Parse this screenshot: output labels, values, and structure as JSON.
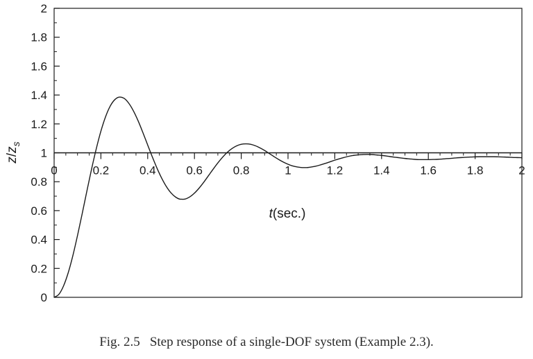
{
  "chart_data": {
    "type": "line",
    "title": "",
    "xlabel_var": "t",
    "xlabel_unit": "(sec.)",
    "ylabel_var": "z",
    "ylabel_sep": "/",
    "ylabel_den": "z",
    "ylabel_sub": "s",
    "xlim": [
      0,
      2
    ],
    "ylim": [
      0,
      2
    ],
    "x_axis_at_y": 1,
    "x_ticks": [
      0,
      0.2,
      0.4,
      0.6,
      0.8,
      1,
      1.2,
      1.4,
      1.6,
      1.8,
      2
    ],
    "x_tick_labels": [
      "0",
      "0.2",
      "0.4",
      "0.6",
      "0.8",
      "1",
      "1.2",
      "1.4",
      "1.6",
      "1.8",
      "2"
    ],
    "y_ticks": [
      0,
      0.2,
      0.4,
      0.6,
      0.8,
      1,
      1.2,
      1.4,
      1.6,
      1.8,
      2
    ],
    "y_tick_labels": [
      "0",
      "0.2",
      "0.4",
      "0.6",
      "0.8",
      "1",
      "1.2",
      "1.4",
      "1.6",
      "1.8",
      "2"
    ],
    "grid": false,
    "line_color": "#1a1a1a",
    "series": [
      {
        "x": [
          0,
          0.02,
          0.04,
          0.06,
          0.08,
          0.1,
          0.12,
          0.14,
          0.16,
          0.18,
          0.2,
          0.22,
          0.24,
          0.26,
          0.28,
          0.3,
          0.32,
          0.34,
          0.36,
          0.38,
          0.4,
          0.42,
          0.44,
          0.46,
          0.48,
          0.5,
          0.52,
          0.54,
          0.56,
          0.58,
          0.6,
          0.62,
          0.64,
          0.66,
          0.68,
          0.7,
          0.72,
          0.74,
          0.76,
          0.78,
          0.8,
          0.82,
          0.84,
          0.86,
          0.88,
          0.9,
          0.92,
          0.94,
          0.96,
          0.98,
          1,
          1.02,
          1.04,
          1.06,
          1.08,
          1.1,
          1.12,
          1.14,
          1.16,
          1.18,
          1.2,
          1.22,
          1.24,
          1.26,
          1.28,
          1.3,
          1.32,
          1.34,
          1.36,
          1.38,
          1.4,
          1.42,
          1.44,
          1.46,
          1.48,
          1.5,
          1.52,
          1.54,
          1.56,
          1.58,
          1.6,
          1.62,
          1.64,
          1.66,
          1.68,
          1.7,
          1.72,
          1.74,
          1.76,
          1.78,
          1.8,
          1.82,
          1.84,
          1.86,
          1.88,
          1.9,
          1.92,
          1.94,
          1.96,
          1.98,
          2
        ],
        "y": [
          0,
          0.02,
          0.078,
          0.169,
          0.288,
          0.428,
          0.579,
          0.735,
          0.887,
          1.027,
          1.15,
          1.25,
          1.324,
          1.369,
          1.386,
          1.376,
          1.341,
          1.287,
          1.218,
          1.138,
          1.054,
          0.971,
          0.893,
          0.824,
          0.766,
          0.722,
          0.693,
          0.679,
          0.68,
          0.695,
          0.721,
          0.756,
          0.797,
          0.842,
          0.887,
          0.93,
          0.969,
          1.003,
          1.029,
          1.048,
          1.059,
          1.062,
          1.059,
          1.049,
          1.034,
          1.016,
          0.995,
          0.974,
          0.954,
          0.936,
          0.921,
          0.909,
          0.902,
          0.898,
          0.898,
          0.902,
          0.908,
          0.917,
          0.927,
          0.938,
          0.949,
          0.959,
          0.968,
          0.976,
          0.982,
          0.986,
          0.988,
          0.989,
          0.988,
          0.985,
          0.982,
          0.978,
          0.973,
          0.969,
          0.965,
          0.961,
          0.958,
          0.955,
          0.953,
          0.953,
          0.953,
          0.954,
          0.955,
          0.957,
          0.96,
          0.962,
          0.965,
          0.967,
          0.969,
          0.971,
          0.972,
          0.973,
          0.973,
          0.973,
          0.973,
          0.972,
          0.971,
          0.97,
          0.968,
          0.967,
          0.966
        ]
      }
    ]
  },
  "caption": {
    "number": "Fig. 2.5",
    "text": "Step response of a single-DOF system (Example 2.3)."
  }
}
